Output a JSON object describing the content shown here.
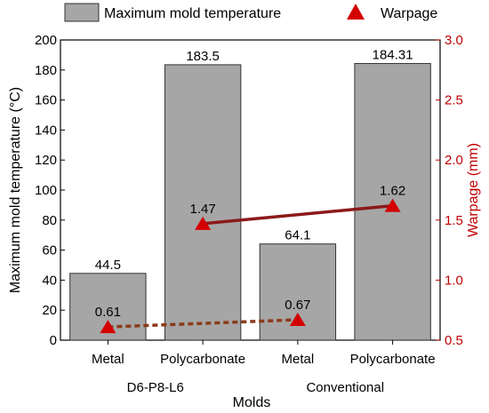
{
  "chart_data": {
    "type": "bar",
    "legend_placement": "top",
    "legend": [
      {
        "label": "Maximum mold temperature",
        "color": "#a6a6a6",
        "marker": "bar"
      },
      {
        "label": "Warpage",
        "color": "#d40000",
        "marker": "triangle"
      }
    ],
    "xlabel": "Molds",
    "ylabel_left": "Maximum mold temperature (°C)",
    "ylabel_right": "Warpage (mm)",
    "ylim_left": [
      0,
      200
    ],
    "yticks_left": [
      "0",
      "20",
      "40",
      "60",
      "80",
      "100",
      "120",
      "140",
      "160",
      "180",
      "200"
    ],
    "ylim_right": [
      0.5,
      3.0
    ],
    "yticks_right": [
      "0.5",
      "1.0",
      "1.5",
      "2.0",
      "2.5",
      "3.0"
    ],
    "categories": [
      "Metal",
      "Polycarbonate",
      "Metal",
      "Polycarbonate"
    ],
    "groups": [
      "D6-P8-L6",
      "Conventional"
    ],
    "series": [
      {
        "name": "Maximum mold temperature",
        "axis": "left",
        "values": [
          44.5,
          183.5,
          64.1,
          184.31
        ],
        "labels": [
          "44.5",
          "183.5",
          "64.1",
          "184.31"
        ],
        "color": "#a6a6a6"
      },
      {
        "name": "Warpage",
        "axis": "right",
        "values": [
          0.61,
          1.47,
          0.67,
          1.62
        ],
        "labels": [
          "0.61",
          "1.47",
          "0.67",
          "1.62"
        ],
        "color": "#d40000"
      }
    ],
    "warpage_links": [
      {
        "from": 0,
        "to": 2,
        "style": "dashed",
        "color": "#8b3a1a"
      },
      {
        "from": 1,
        "to": 3,
        "style": "solid",
        "color": "#8b1a1a"
      }
    ],
    "grid": false
  }
}
